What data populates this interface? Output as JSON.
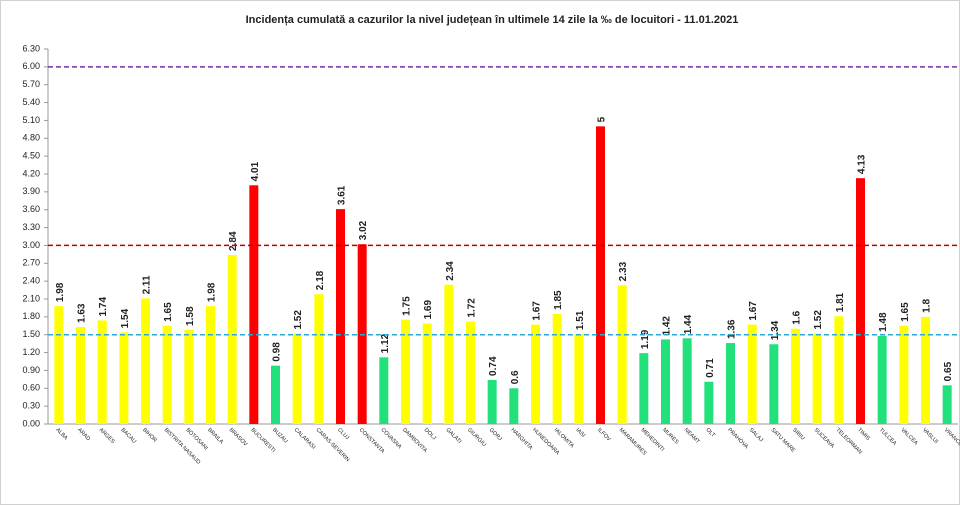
{
  "chart_data": {
    "type": "bar",
    "title": "Incidența cumulată a cazurilor la nivel județean în ultimele 14 zile la ‰ de locuitori - 11.01.2021",
    "categories": [
      "ALBA",
      "ARAD",
      "ARGES",
      "BACAU",
      "BIHOR",
      "BISTRITA NASAUD",
      "BOTOSANI",
      "BRAILA",
      "BRASOV",
      "BUCURESTI",
      "BUZAU",
      "CALARASI",
      "CARAS-SEVERIN",
      "CLUJ",
      "CONSTANTA",
      "COVASNA",
      "DAMBOVITA",
      "DOLJ",
      "GALATI",
      "GIURGIU",
      "GORJ",
      "HARGHITA",
      "HUNEDOARA",
      "IALOMITA",
      "IASI",
      "ILFOV",
      "MARAMURES",
      "MEHEDINTI",
      "MURES",
      "NEAMT",
      "OLT",
      "PRAHOVA",
      "SALAJ",
      "SATU MARE",
      "SIBIU",
      "SUCEAVA",
      "TELEORMAN",
      "TIMIS",
      "TULCEA",
      "VALCEA",
      "VASLUI",
      "VRANCEA"
    ],
    "values": [
      1.98,
      1.63,
      1.74,
      1.54,
      2.11,
      1.65,
      1.58,
      1.98,
      2.84,
      4.01,
      0.98,
      1.52,
      2.18,
      3.61,
      3.02,
      1.12,
      1.75,
      1.69,
      2.34,
      1.72,
      0.74,
      0.6,
      1.67,
      1.85,
      1.51,
      5,
      2.33,
      1.19,
      1.42,
      1.44,
      0.71,
      1.36,
      1.67,
      1.34,
      1.6,
      1.52,
      1.81,
      4.13,
      1.48,
      1.65,
      1.8,
      0.65
    ],
    "colors": [
      "#ffff00",
      "#ffff00",
      "#ffff00",
      "#ffff00",
      "#ffff00",
      "#ffff00",
      "#ffff00",
      "#ffff00",
      "#ffff00",
      "#ff0000",
      "#22e07a",
      "#ffff00",
      "#ffff00",
      "#ff0000",
      "#ff0000",
      "#22e07a",
      "#ffff00",
      "#ffff00",
      "#ffff00",
      "#ffff00",
      "#22e07a",
      "#22e07a",
      "#ffff00",
      "#ffff00",
      "#ffff00",
      "#ff0000",
      "#ffff00",
      "#22e07a",
      "#22e07a",
      "#22e07a",
      "#22e07a",
      "#22e07a",
      "#ffff00",
      "#22e07a",
      "#ffff00",
      "#ffff00",
      "#ffff00",
      "#ff0000",
      "#22e07a",
      "#ffff00",
      "#ffff00",
      "#22e07a"
    ],
    "ylim": [
      0,
      6.3
    ],
    "yticks": [
      {
        "value": 0,
        "label": "0.00"
      },
      {
        "value": 0.3,
        "label": "0.30"
      },
      {
        "value": 0.6,
        "label": "0.60"
      },
      {
        "value": 0.9,
        "label": "0.90"
      },
      {
        "value": 1.2,
        "label": "1.20"
      },
      {
        "value": 1.5,
        "label": "1.50"
      },
      {
        "value": 1.8,
        "label": "1.80"
      },
      {
        "value": 2.1,
        "label": "2.10"
      },
      {
        "value": 2.4,
        "label": "2.40"
      },
      {
        "value": 2.7,
        "label": "2.70"
      },
      {
        "value": 3,
        "label": "3.00"
      },
      {
        "value": 3.3,
        "label": "3.30"
      },
      {
        "value": 3.6,
        "label": "3.60"
      },
      {
        "value": 3.9,
        "label": "3.90"
      },
      {
        "value": 4.2,
        "label": "4.20"
      },
      {
        "value": 4.5,
        "label": "4.50"
      },
      {
        "value": 4.8,
        "label": "4.80"
      },
      {
        "value": 5.1,
        "label": "5.10"
      },
      {
        "value": 5.4,
        "label": "5.40"
      },
      {
        "value": 5.7,
        "label": "5.70"
      },
      {
        "value": 6,
        "label": "6.00"
      },
      {
        "value": 6.3,
        "label": "6.30"
      }
    ],
    "reference_lines": [
      {
        "value": 1.5,
        "color": "#2aa8d8"
      },
      {
        "value": 3,
        "color": "#c00000"
      },
      {
        "value": 6,
        "color": "#7030a0"
      }
    ],
    "grid": false
  }
}
